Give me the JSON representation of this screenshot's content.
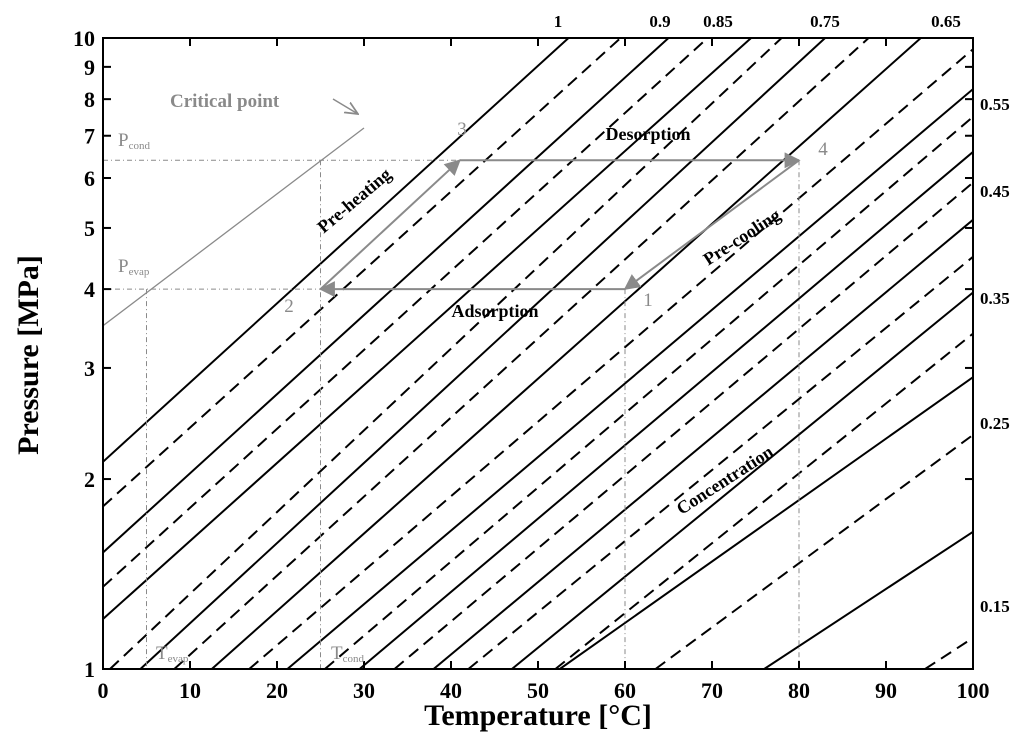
{
  "chart_data": {
    "type": "line",
    "xlabel": "Temperature [°C]",
    "ylabel": "Pressure [MPa]",
    "xlim": [
      0,
      100
    ],
    "ylim": [
      1,
      10
    ],
    "yscale": "log",
    "grid": false,
    "x_ticks": [
      "0",
      "10",
      "20",
      "30",
      "40",
      "50",
      "60",
      "70",
      "80",
      "90",
      "100"
    ],
    "y_ticks": [
      {
        "value": 1,
        "label": "1"
      },
      {
        "value": 2,
        "label": "2"
      },
      {
        "value": 3,
        "label": "3"
      },
      {
        "value": 4,
        "label": "4"
      },
      {
        "value": 5,
        "label": "5"
      },
      {
        "value": 6,
        "label": "6"
      },
      {
        "value": 7,
        "label": "7"
      },
      {
        "value": 8,
        "label": "8"
      },
      {
        "value": 9,
        "label": "9"
      },
      {
        "value": 10,
        "label": "10"
      }
    ],
    "isostere_labels_top": [
      "1",
      "0.9",
      "0.85",
      "0.75",
      "0.65"
    ],
    "isostere_labels_right": [
      "0.55",
      "0.45",
      "0.35",
      "0.25",
      "0.15"
    ],
    "series": [
      {
        "style": "solid",
        "points": [
          [
            0,
            2.13
          ],
          [
            53.5,
            10
          ]
        ]
      },
      {
        "style": "dashed",
        "points": [
          [
            0,
            1.81
          ],
          [
            59.5,
            10
          ]
        ]
      },
      {
        "style": "solid",
        "points": [
          [
            0,
            1.53
          ],
          [
            65,
            10
          ]
        ]
      },
      {
        "style": "dashed",
        "points": [
          [
            0,
            1.35
          ],
          [
            69.5,
            10
          ]
        ]
      },
      {
        "style": "solid",
        "points": [
          [
            0,
            1.2
          ],
          [
            74.5,
            10
          ]
        ]
      },
      {
        "style": "dashed",
        "points": [
          [
            0.8,
            1
          ],
          [
            78,
            10
          ]
        ]
      },
      {
        "style": "solid",
        "points": [
          [
            4.3,
            1
          ],
          [
            83,
            10
          ]
        ]
      },
      {
        "style": "dashed",
        "points": [
          [
            8.2,
            1
          ],
          [
            88,
            10
          ]
        ]
      },
      {
        "style": "solid",
        "points": [
          [
            12.5,
            1
          ],
          [
            94,
            10
          ]
        ]
      },
      {
        "style": "dashed",
        "points": [
          [
            16.8,
            1
          ],
          [
            100,
            9.6
          ]
        ]
      },
      {
        "style": "solid",
        "points": [
          [
            21.2,
            1
          ],
          [
            100,
            8.3
          ]
        ]
      },
      {
        "style": "dashed",
        "points": [
          [
            25.5,
            1
          ],
          [
            100,
            7.5
          ]
        ]
      },
      {
        "style": "solid",
        "points": [
          [
            29.5,
            1
          ],
          [
            100,
            6.6
          ]
        ]
      },
      {
        "style": "dashed",
        "points": [
          [
            33.5,
            1
          ],
          [
            100,
            5.9
          ]
        ]
      },
      {
        "style": "solid",
        "points": [
          [
            38,
            1
          ],
          [
            100,
            5.15
          ]
        ]
      },
      {
        "style": "dashed",
        "points": [
          [
            42,
            1
          ],
          [
            100,
            4.5
          ]
        ]
      },
      {
        "style": "solid",
        "points": [
          [
            47,
            1
          ],
          [
            100,
            3.95
          ]
        ]
      },
      {
        "style": "dashed",
        "points": [
          [
            52,
            1
          ],
          [
            100,
            3.4
          ]
        ]
      },
      {
        "style": "solid",
        "points": [
          [
            52.5,
            1
          ],
          [
            100,
            2.9
          ]
        ]
      },
      {
        "style": "dashed",
        "points": [
          [
            63.5,
            1
          ],
          [
            100,
            2.35
          ]
        ]
      },
      {
        "style": "solid",
        "points": [
          [
            76,
            1
          ],
          [
            100,
            1.65
          ]
        ]
      },
      {
        "style": "dashed",
        "points": [
          [
            94.5,
            1
          ],
          [
            100,
            1.12
          ]
        ]
      }
    ],
    "critical_line": {
      "points": [
        [
          0,
          3.5
        ],
        [
          30,
          7.2
        ]
      ]
    },
    "cycle": {
      "points": [
        {
          "label": "1",
          "x": 60,
          "y": 4.0
        },
        {
          "label": "2",
          "x": 25,
          "y": 4.0
        },
        {
          "label": "3",
          "x": 41,
          "y": 6.4
        },
        {
          "label": "4",
          "x": 80,
          "y": 6.4
        }
      ],
      "processes": [
        "Adsorption",
        "Pre-heating",
        "Desorption",
        "Pre-cooling"
      ]
    },
    "guides": {
      "p_cond": 6.4,
      "p_evap": 4.0,
      "t_evap": 5,
      "t_cond": 25,
      "t_adsorption_end": 60,
      "t_desorption_end": 80
    },
    "annotations": {
      "critical_point": "Critical point",
      "concentration": "Concentration",
      "p_cond_main": "P",
      "p_cond_sub": "cond",
      "p_evap_main": "P",
      "p_evap_sub": "evap",
      "t_evap_main": "T",
      "t_evap_sub": "evap",
      "t_cond_main": "T",
      "t_cond_sub": "cond"
    }
  }
}
